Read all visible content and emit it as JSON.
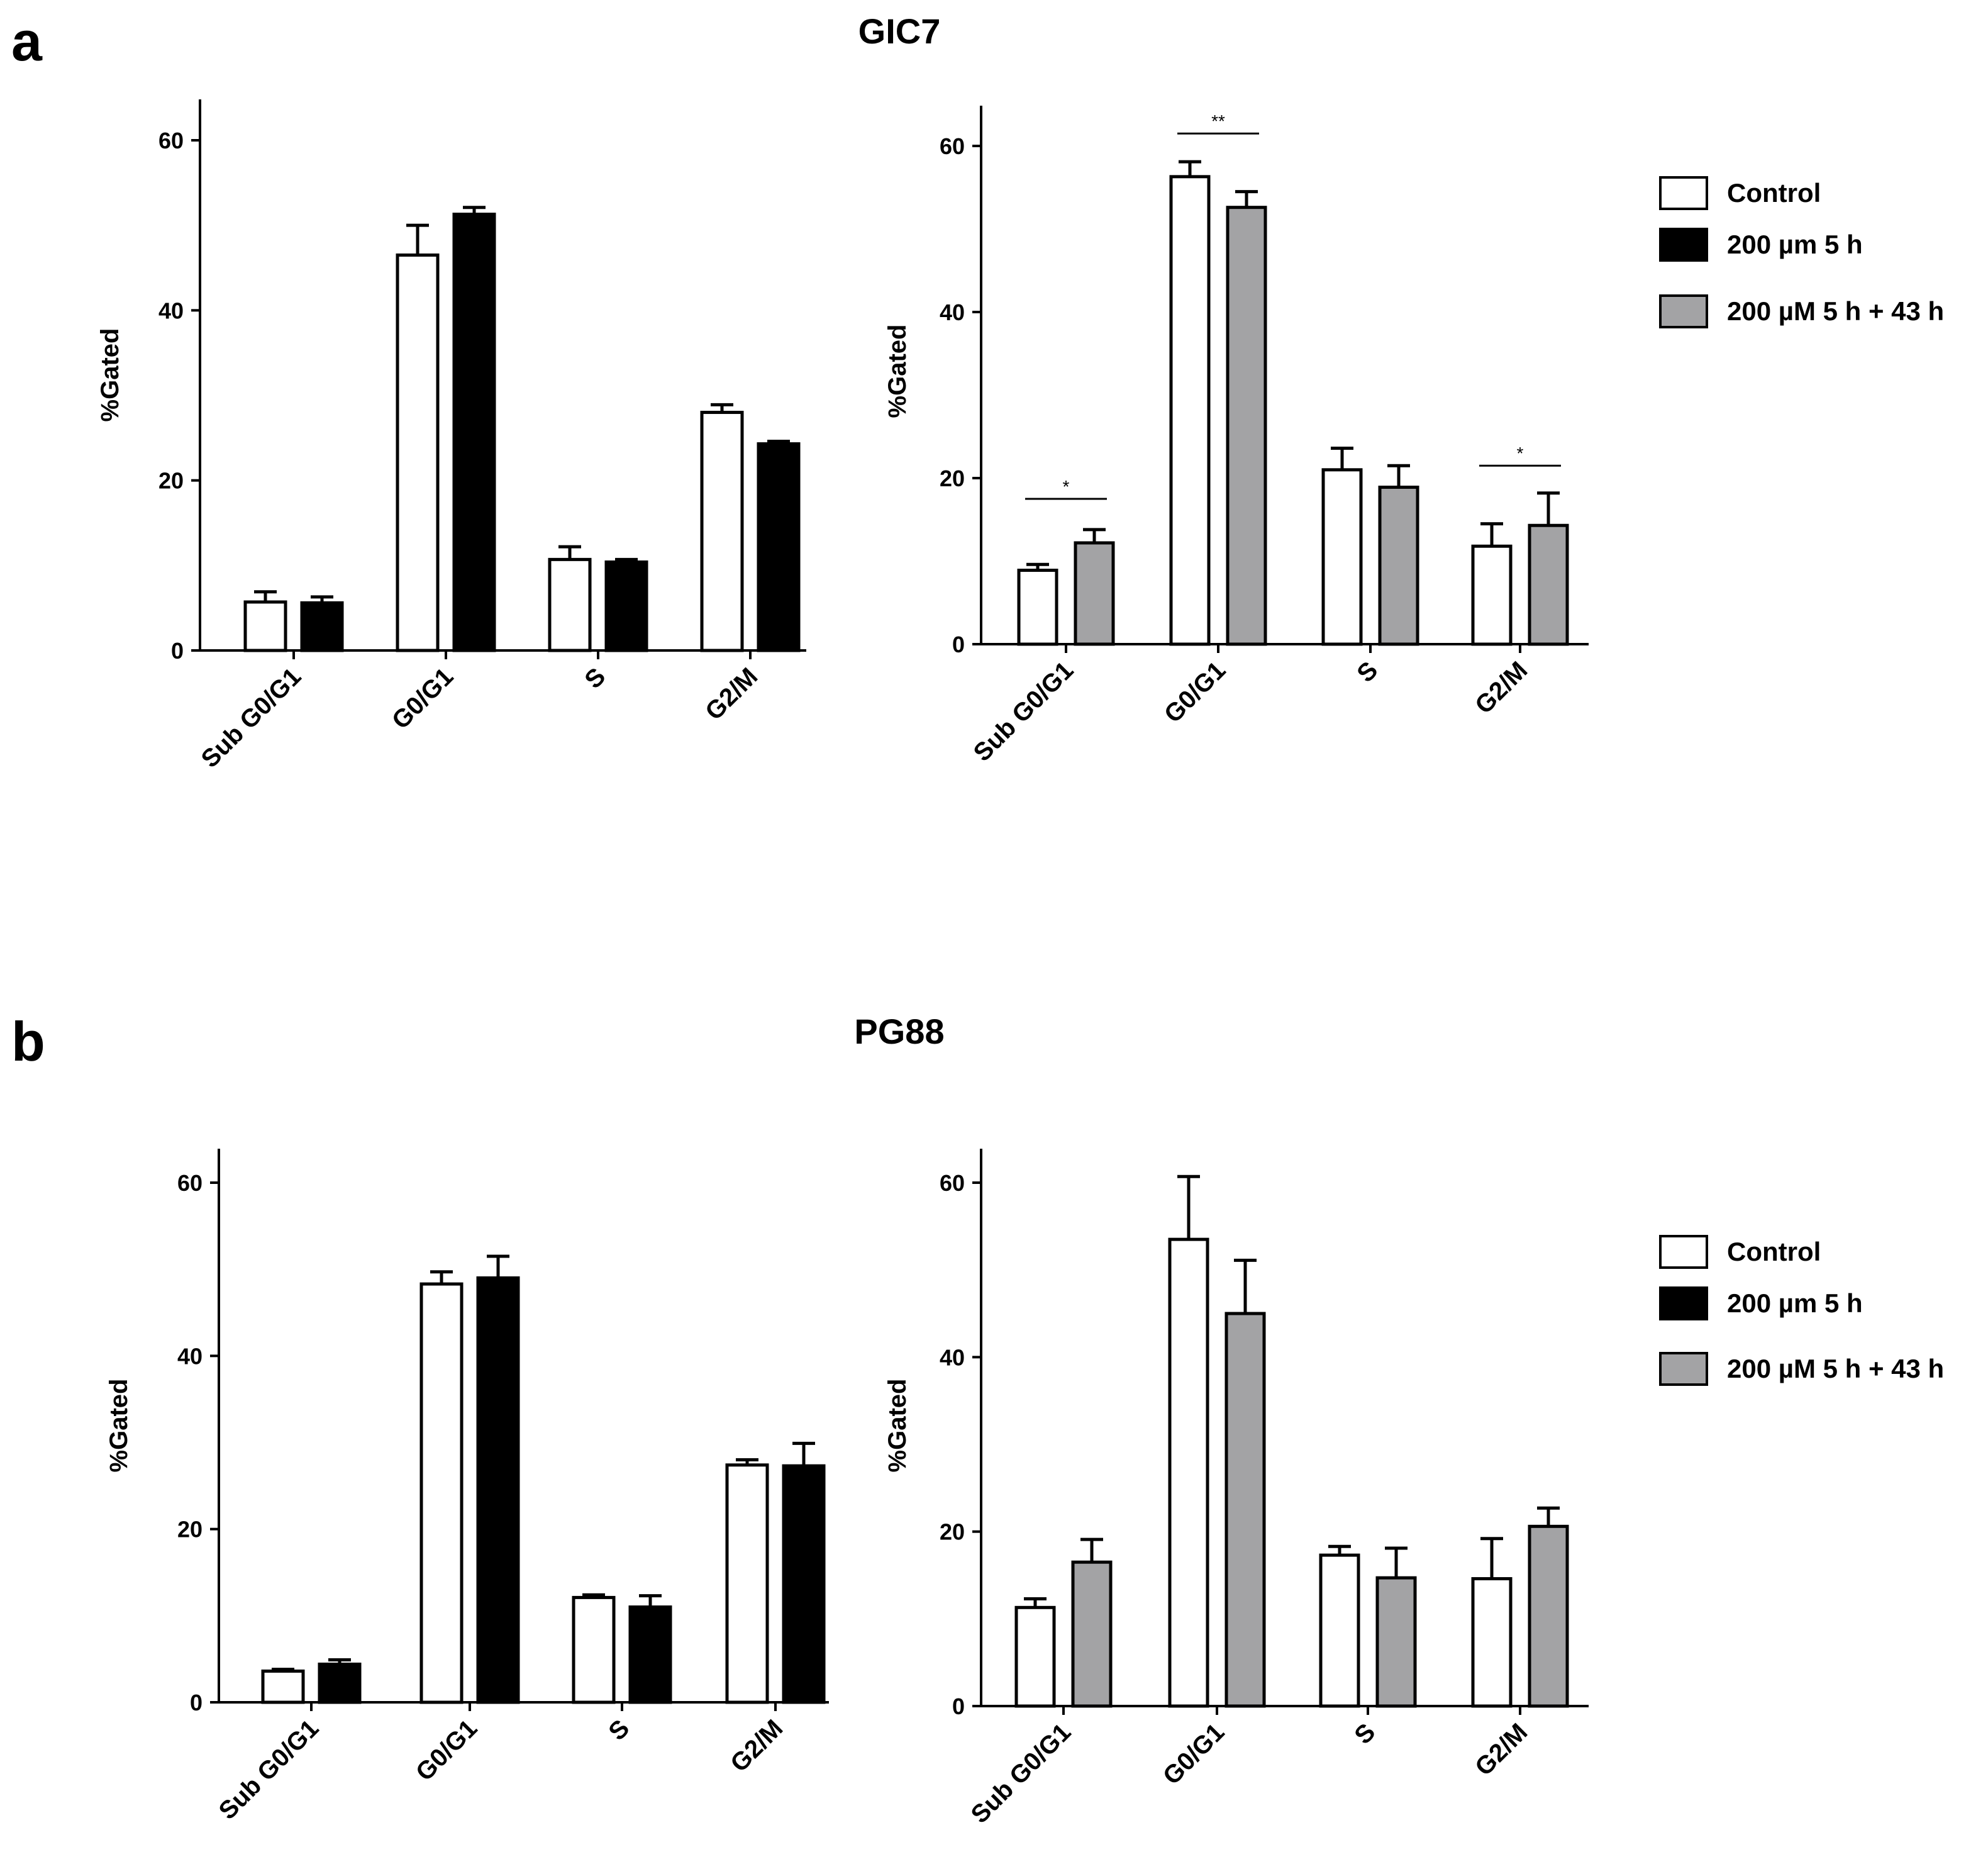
{
  "figure": {
    "panel_a": {
      "letter": "a",
      "title": "GIC7"
    },
    "panel_b": {
      "letter": "b",
      "title": "PG88"
    }
  },
  "colors": {
    "control": "#ffffff",
    "treated_5h": "#000000",
    "treated_recovery": "#a3a3a5",
    "axis": "#000000"
  },
  "legends": [
    {
      "items": [
        {
          "label": "Control",
          "color": "#ffffff"
        },
        {
          "label": "200 µm 5 h",
          "color": "#000000"
        },
        {
          "label": "200 µM 5 h + 43 h",
          "color": "#a3a3a5"
        }
      ]
    },
    {
      "items": [
        {
          "label": "Control",
          "color": "#ffffff"
        },
        {
          "label": "200 µm 5 h",
          "color": "#000000"
        },
        {
          "label": "200 µM 5 h + 43 h",
          "color": "#a3a3a5"
        }
      ]
    }
  ],
  "chart_data": [
    {
      "type": "bar",
      "panel": "a",
      "categories": [
        "Sub G0/G1",
        "G0/G1",
        "S",
        "G2/M"
      ],
      "ylabel": "%Gated",
      "ylim": [
        0,
        65
      ],
      "yticks": [
        0,
        20,
        40,
        60
      ],
      "series": [
        {
          "name": "Control",
          "color": "#ffffff",
          "values": [
            5.7,
            46.5,
            10.7,
            28.0
          ],
          "errors": [
            1.2,
            3.5,
            1.5,
            0.9
          ]
        },
        {
          "name": "200 µm 5 h",
          "color": "#000000",
          "values": [
            5.6,
            51.3,
            10.4,
            24.3
          ],
          "errors": [
            0.7,
            0.8,
            0.3,
            0.3
          ]
        }
      ],
      "significance": []
    },
    {
      "type": "bar",
      "panel": "a",
      "categories": [
        "Sub G0/G1",
        "G0/G1",
        "S",
        "G2/M"
      ],
      "ylabel": "%Gated",
      "ylim": [
        0,
        65
      ],
      "yticks": [
        0,
        20,
        40,
        60
      ],
      "series": [
        {
          "name": "Control",
          "color": "#ffffff",
          "values": [
            8.9,
            56.3,
            21.0,
            11.8
          ],
          "errors": [
            0.7,
            1.8,
            2.6,
            2.7
          ]
        },
        {
          "name": "200 µM 5 h + 43 h",
          "color": "#a3a3a5",
          "values": [
            12.2,
            52.6,
            18.9,
            14.3
          ],
          "errors": [
            1.6,
            1.9,
            2.6,
            3.9
          ]
        }
      ],
      "significance": [
        {
          "category": "Sub G0/G1",
          "label": "*",
          "y": 17.5
        },
        {
          "category": "G0/G1",
          "label": "**",
          "y": 61.5
        },
        {
          "category": "G2/M",
          "label": "*",
          "y": 21.5
        }
      ]
    },
    {
      "type": "bar",
      "panel": "b",
      "categories": [
        "Sub G0/G1",
        "G0/G1",
        "S",
        "G2/M"
      ],
      "ylabel": "%Gated",
      "ylim": [
        0,
        65
      ],
      "yticks": [
        0,
        20,
        40,
        60
      ],
      "series": [
        {
          "name": "Control",
          "color": "#ffffff",
          "values": [
            3.6,
            48.3,
            12.1,
            27.4
          ],
          "errors": [
            0.2,
            1.4,
            0.3,
            0.6
          ]
        },
        {
          "name": "200 µm 5 h",
          "color": "#000000",
          "values": [
            4.4,
            49.0,
            11.0,
            27.3
          ],
          "errors": [
            0.5,
            2.5,
            1.3,
            2.6
          ]
        }
      ],
      "significance": []
    },
    {
      "type": "bar",
      "panel": "b",
      "categories": [
        "Sub G0/G1",
        "G0/G1",
        "S",
        "G2/M"
      ],
      "ylabel": "%Gated",
      "ylim": [
        0,
        65
      ],
      "yticks": [
        0,
        20,
        40,
        60
      ],
      "series": [
        {
          "name": "Control",
          "color": "#ffffff",
          "values": [
            11.3,
            53.5,
            17.3,
            14.6
          ],
          "errors": [
            1.0,
            7.2,
            1.0,
            4.6
          ]
        },
        {
          "name": "200 µM 5 h + 43 h",
          "color": "#a3a3a5",
          "values": [
            16.5,
            45.0,
            14.7,
            20.6
          ],
          "errors": [
            2.6,
            6.1,
            3.4,
            2.1
          ]
        }
      ],
      "significance": []
    }
  ]
}
